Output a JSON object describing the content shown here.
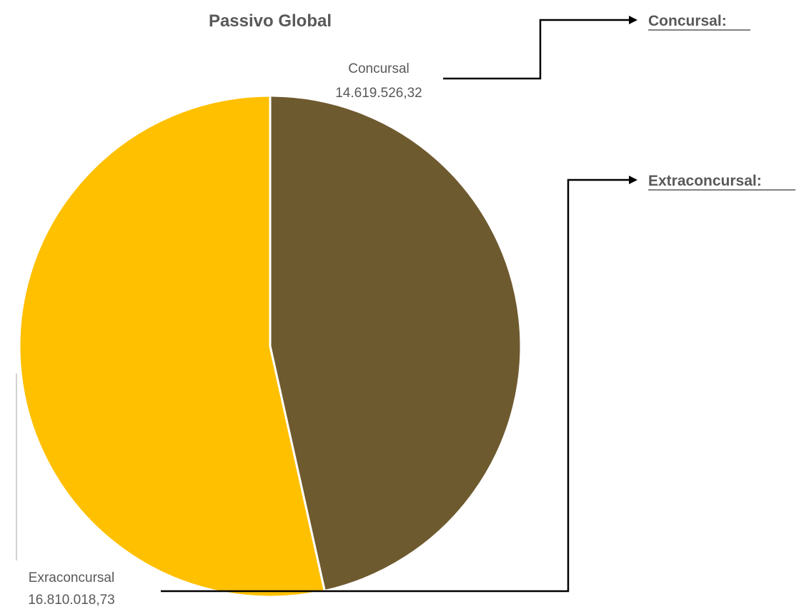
{
  "chart_data": {
    "type": "pie",
    "title": "Passivo Global",
    "slices": [
      {
        "label": "Concursal",
        "value_label": "14.619.526,32",
        "value": 14619526.32,
        "color": "#6E5A2F"
      },
      {
        "label": "Exraconcursal",
        "value_label": "16.810.018,73",
        "value": 16810018.73,
        "color": "#FFC000"
      }
    ],
    "start_angle_deg": 0,
    "direction": "clockwise",
    "slice_border_color": "#FFFFFF"
  },
  "annotations": {
    "concursal_label": "Concursal:",
    "extraconcursal_label": "Extraconcursal:"
  }
}
